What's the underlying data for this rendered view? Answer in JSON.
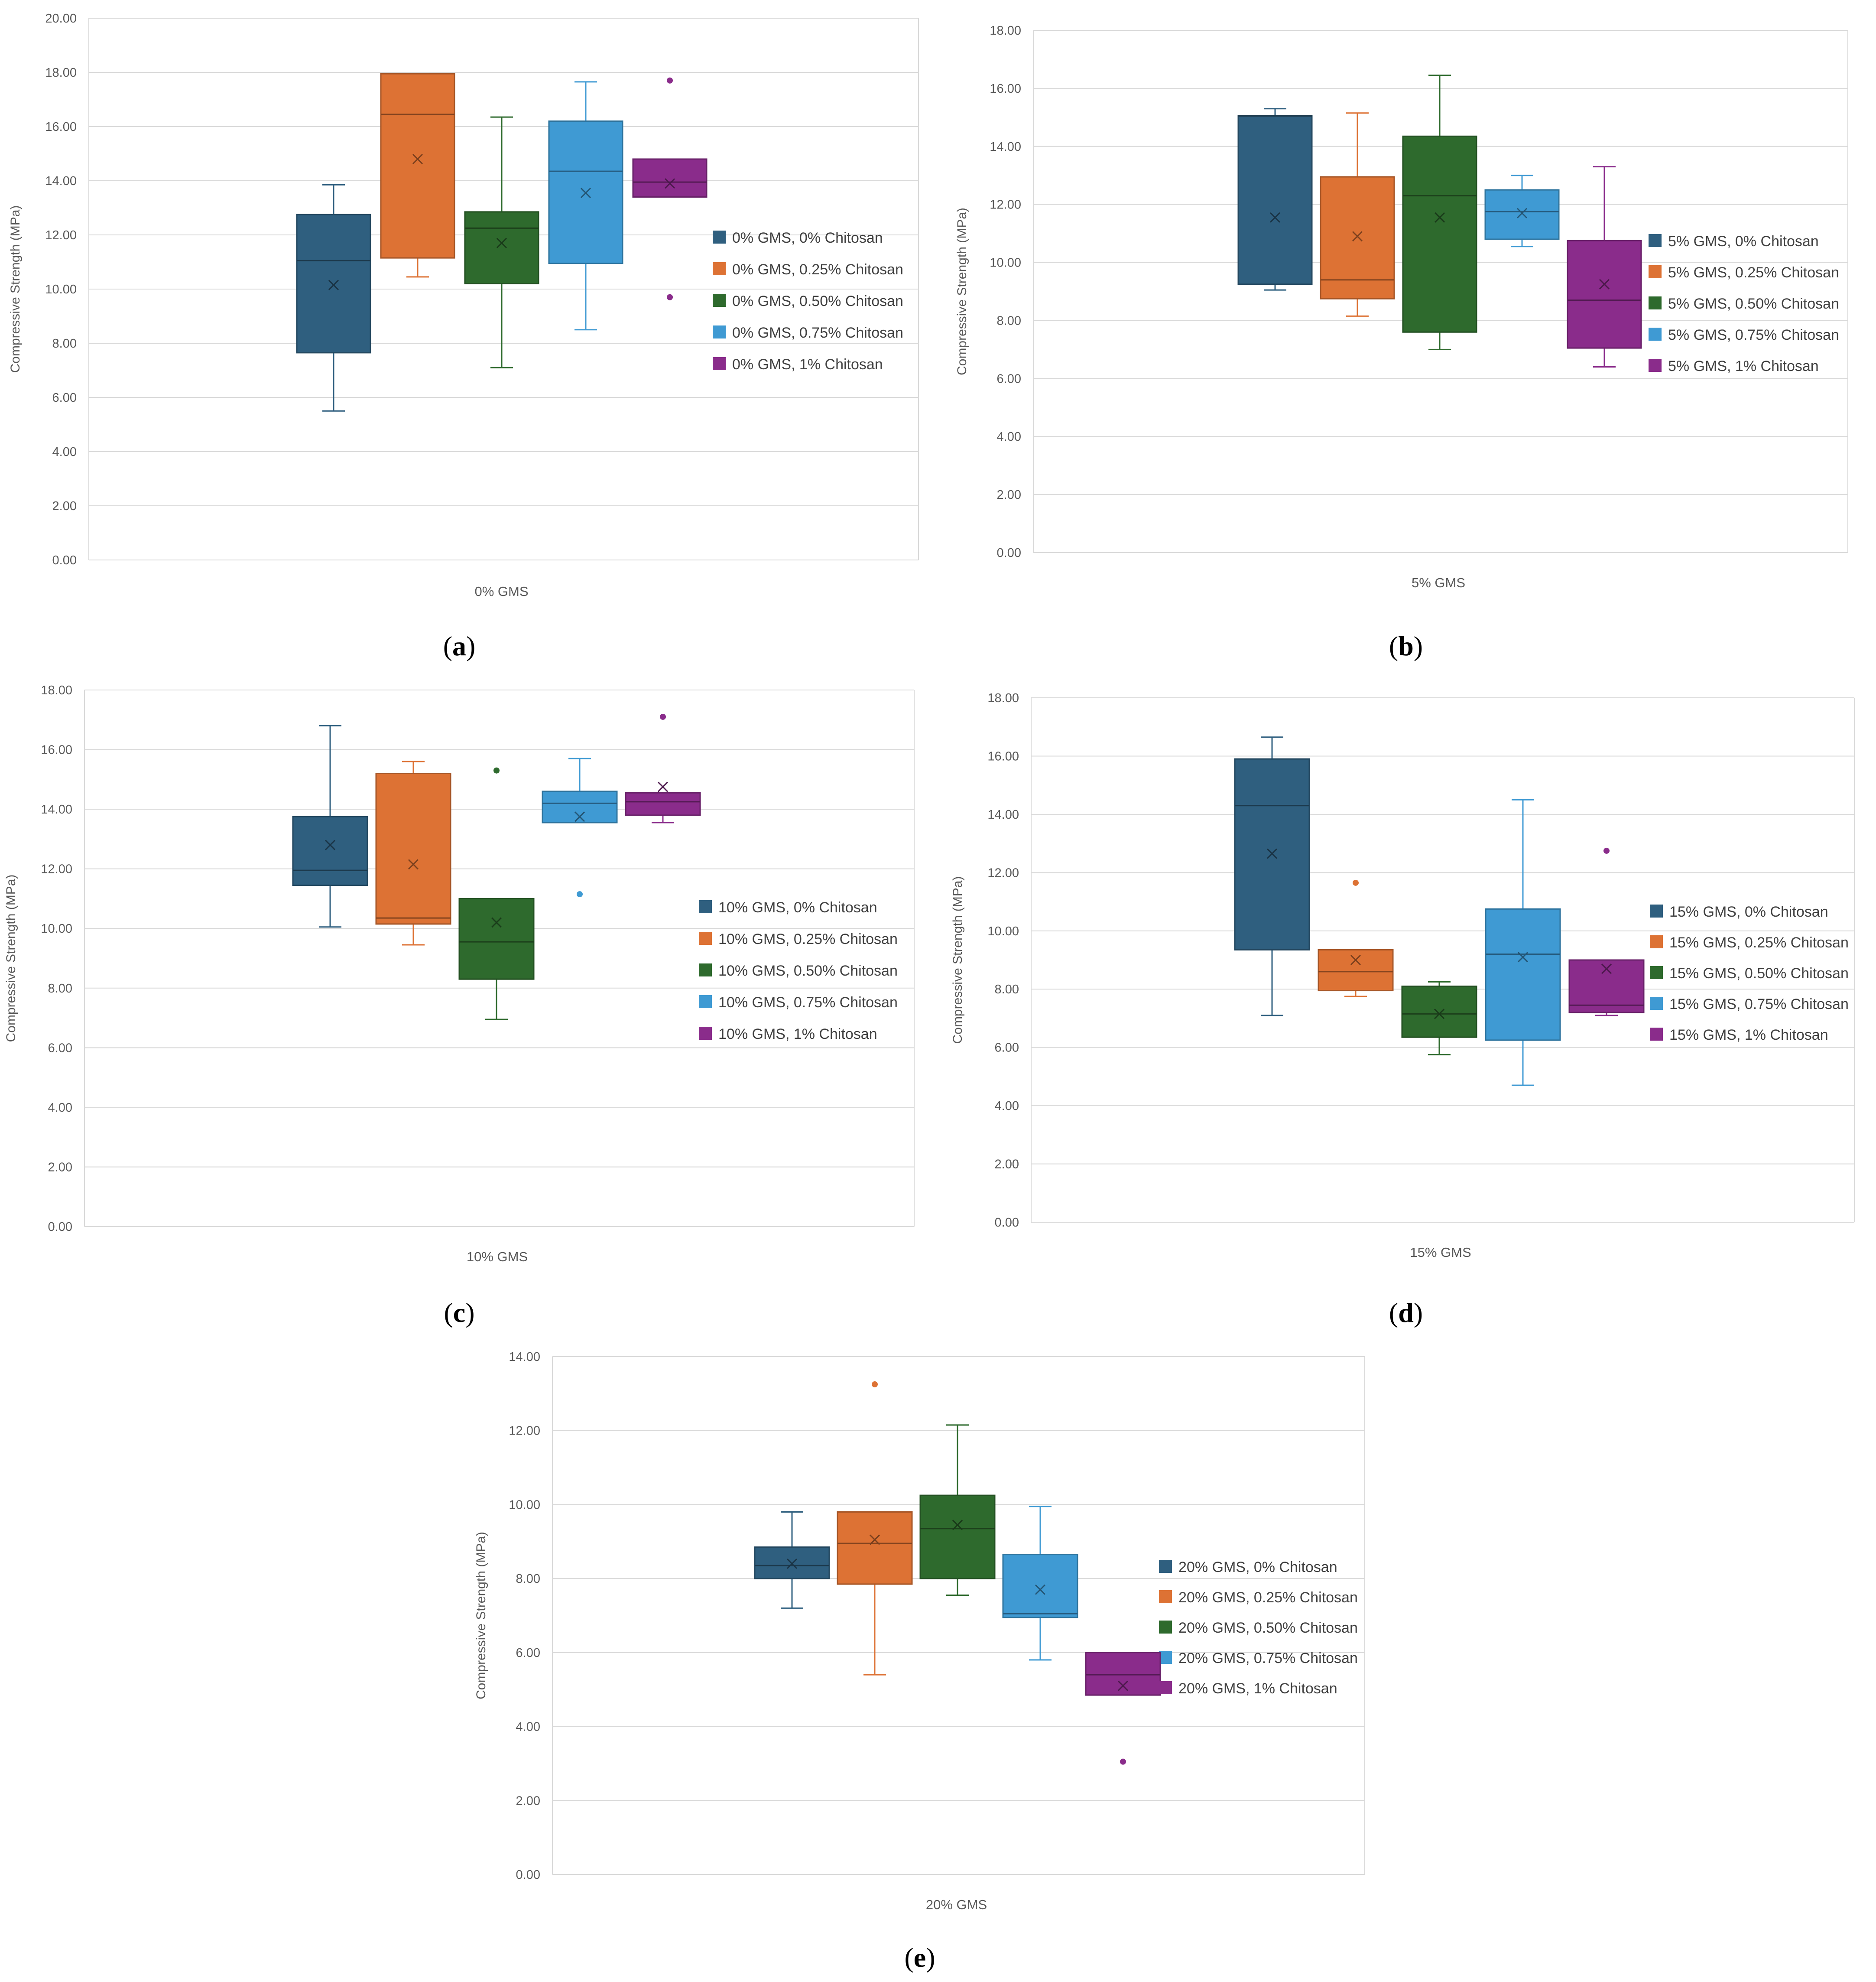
{
  "colors": {
    "dark_blue": "#2f5f7f",
    "orange": "#dd7234",
    "green": "#2e6a2d",
    "light_blue": "#3f9ad3",
    "purple": "#8a2c8b",
    "grid": "#d9d9d9",
    "axis_text": "#595959"
  },
  "chart_data": [
    {
      "type": "box",
      "panel": "a",
      "category": "0% GMS",
      "ylabel": "Compressive Strength (MPa)",
      "ylim": [
        0,
        20
      ],
      "yticks": [
        "0.00",
        "2.00",
        "4.00",
        "6.00",
        "8.00",
        "10.00",
        "12.00",
        "14.00",
        "16.00",
        "18.00",
        "20.00"
      ],
      "legend_position": "right",
      "series": [
        {
          "name": "0% GMS, 0% Chitosan",
          "color": "#2f5f7f",
          "min": 5.5,
          "q1": 7.65,
          "median": 11.05,
          "q3": 12.75,
          "max": 13.85,
          "mean": 10.15,
          "outliers": []
        },
        {
          "name": "0% GMS, 0.25% Chitosan",
          "color": "#dd7234",
          "min": 10.45,
          "q1": 11.15,
          "median": 16.45,
          "q3": 17.95,
          "max": 17.95,
          "mean": 14.8,
          "outliers": []
        },
        {
          "name": "0% GMS, 0.50% Chitosan",
          "color": "#2e6a2d",
          "min": 7.1,
          "q1": 10.2,
          "median": 12.25,
          "q3": 12.85,
          "max": 16.35,
          "mean": 11.7,
          "outliers": []
        },
        {
          "name": "0% GMS, 0.75% Chitosan",
          "color": "#3f9ad3",
          "min": 8.5,
          "q1": 10.95,
          "median": 14.35,
          "q3": 16.2,
          "max": 17.65,
          "mean": 13.55,
          "outliers": []
        },
        {
          "name": "0% GMS, 1% Chitosan",
          "color": "#8a2c8b",
          "min": 13.4,
          "q1": 13.4,
          "median": 13.95,
          "q3": 14.8,
          "max": 14.8,
          "mean": 13.9,
          "outliers": [
            17.7,
            9.7
          ]
        }
      ]
    },
    {
      "type": "box",
      "panel": "b",
      "category": "5% GMS",
      "ylabel": "Compressive Strength (MPa)",
      "ylim": [
        0,
        18
      ],
      "yticks": [
        "0.00",
        "2.00",
        "4.00",
        "6.00",
        "8.00",
        "10.00",
        "12.00",
        "14.00",
        "16.00",
        "18.00"
      ],
      "legend_position": "right",
      "series": [
        {
          "name": "5% GMS, 0% Chitosan",
          "color": "#2f5f7f",
          "min": 9.05,
          "q1": 9.25,
          "median": 15.05,
          "q3": 15.05,
          "max": 15.3,
          "mean": 11.55,
          "outliers": []
        },
        {
          "name": "5% GMS, 0.25% Chitosan",
          "color": "#dd7234",
          "min": 8.15,
          "q1": 8.75,
          "median": 9.4,
          "q3": 12.95,
          "max": 15.15,
          "mean": 10.9,
          "outliers": []
        },
        {
          "name": "5% GMS, 0.50% Chitosan",
          "color": "#2e6a2d",
          "min": 7.0,
          "q1": 7.6,
          "median": 12.3,
          "q3": 14.35,
          "max": 16.45,
          "mean": 11.55,
          "outliers": []
        },
        {
          "name": "5% GMS, 0.75% Chitosan",
          "color": "#3f9ad3",
          "min": 10.55,
          "q1": 10.8,
          "median": 11.75,
          "q3": 12.5,
          "max": 13.0,
          "mean": 11.7,
          "outliers": []
        },
        {
          "name": "5% GMS, 1% Chitosan",
          "color": "#8a2c8b",
          "min": 6.4,
          "q1": 7.05,
          "median": 8.7,
          "q3": 10.75,
          "max": 13.3,
          "mean": 9.25,
          "outliers": []
        }
      ]
    },
    {
      "type": "box",
      "panel": "c",
      "category": "10% GMS",
      "ylabel": "Compressive Strength (MPa)",
      "ylim": [
        0,
        18
      ],
      "yticks": [
        "0.00",
        "2.00",
        "4.00",
        "6.00",
        "8.00",
        "10.00",
        "12.00",
        "14.00",
        "16.00",
        "18.00"
      ],
      "legend_position": "right",
      "series": [
        {
          "name": "10% GMS, 0% Chitosan",
          "color": "#2f5f7f",
          "min": 10.05,
          "q1": 11.45,
          "median": 11.95,
          "q3": 13.75,
          "max": 16.8,
          "mean": 12.8,
          "outliers": []
        },
        {
          "name": "10% GMS, 0.25% Chitosan",
          "color": "#dd7234",
          "min": 9.45,
          "q1": 10.15,
          "median": 10.35,
          "q3": 15.2,
          "max": 15.6,
          "mean": 12.15,
          "outliers": []
        },
        {
          "name": "10% GMS, 0.50% Chitosan",
          "color": "#2e6a2d",
          "min": 6.95,
          "q1": 8.3,
          "median": 9.55,
          "q3": 11.0,
          "max": 11.0,
          "mean": 10.2,
          "outliers": [
            15.3
          ]
        },
        {
          "name": "10% GMS, 0.75% Chitosan",
          "color": "#3f9ad3",
          "min": 13.55,
          "q1": 13.55,
          "median": 14.2,
          "q3": 14.6,
          "max": 15.7,
          "mean": 13.75,
          "outliers": [
            11.15
          ]
        },
        {
          "name": "10% GMS, 1% Chitosan",
          "color": "#8a2c8b",
          "min": 13.55,
          "q1": 13.8,
          "median": 14.25,
          "q3": 14.55,
          "max": 14.55,
          "mean": 14.75,
          "outliers": [
            17.1
          ]
        }
      ]
    },
    {
      "type": "box",
      "panel": "d",
      "category": "15% GMS",
      "ylabel": "Compressive Strength (MPa)",
      "ylim": [
        0,
        18
      ],
      "yticks": [
        "0.00",
        "2.00",
        "4.00",
        "6.00",
        "8.00",
        "10.00",
        "12.00",
        "14.00",
        "16.00",
        "18.00"
      ],
      "legend_position": "right",
      "series": [
        {
          "name": "15% GMS, 0% Chitosan",
          "color": "#2f5f7f",
          "min": 7.1,
          "q1": 9.35,
          "median": 14.3,
          "q3": 15.9,
          "max": 16.65,
          "mean": 12.65,
          "outliers": []
        },
        {
          "name": "15% GMS, 0.25% Chitosan",
          "color": "#dd7234",
          "min": 7.75,
          "q1": 7.95,
          "median": 8.6,
          "q3": 9.35,
          "max": 9.35,
          "mean": 9.0,
          "outliers": [
            11.65
          ]
        },
        {
          "name": "15% GMS, 0.50% Chitosan",
          "color": "#2e6a2d",
          "min": 5.75,
          "q1": 6.35,
          "median": 7.15,
          "q3": 8.1,
          "max": 8.25,
          "mean": 7.15,
          "outliers": []
        },
        {
          "name": "15% GMS, 0.75% Chitosan",
          "color": "#3f9ad3",
          "min": 4.7,
          "q1": 6.25,
          "median": 9.2,
          "q3": 10.75,
          "max": 14.5,
          "mean": 9.1,
          "outliers": []
        },
        {
          "name": "15% GMS, 1% Chitosan",
          "color": "#8a2c8b",
          "min": 7.1,
          "q1": 7.2,
          "median": 7.45,
          "q3": 9.0,
          "max": 9.0,
          "mean": 8.7,
          "outliers": [
            12.75
          ]
        }
      ]
    },
    {
      "type": "box",
      "panel": "e",
      "category": "20% GMS",
      "ylabel": "Compressive Strength (MPa)",
      "ylim": [
        0,
        14
      ],
      "yticks": [
        "0.00",
        "2.00",
        "4.00",
        "6.00",
        "8.00",
        "10.00",
        "12.00",
        "14.00"
      ],
      "legend_position": "right",
      "series": [
        {
          "name": "20% GMS, 0% Chitosan",
          "color": "#2f5f7f",
          "min": 7.2,
          "q1": 8.0,
          "median": 8.35,
          "q3": 8.85,
          "max": 9.8,
          "mean": 8.4,
          "outliers": []
        },
        {
          "name": "20% GMS, 0.25% Chitosan",
          "color": "#dd7234",
          "min": 5.4,
          "q1": 7.85,
          "median": 8.95,
          "q3": 9.8,
          "max": 9.8,
          "mean": 9.05,
          "outliers": [
            13.25
          ]
        },
        {
          "name": "20% GMS, 0.50% Chitosan",
          "color": "#2e6a2d",
          "min": 7.55,
          "q1": 8.0,
          "median": 9.35,
          "q3": 10.25,
          "max": 12.15,
          "mean": 9.45,
          "outliers": []
        },
        {
          "name": "20% GMS, 0.75% Chitosan",
          "color": "#3f9ad3",
          "min": 5.8,
          "q1": 6.95,
          "median": 7.05,
          "q3": 8.65,
          "max": 9.95,
          "mean": 7.7,
          "outliers": []
        },
        {
          "name": "20% GMS, 1% Chitosan",
          "color": "#8a2c8b",
          "min": 4.85,
          "q1": 4.85,
          "median": 5.4,
          "q3": 6.0,
          "max": 6.0,
          "mean": 5.1,
          "outliers": [
            3.05
          ]
        }
      ]
    }
  ]
}
